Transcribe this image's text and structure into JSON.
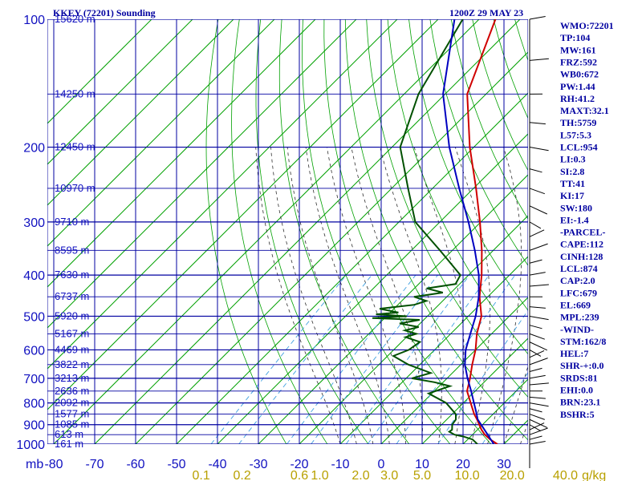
{
  "header": {
    "station_title": "KKEY (72201) Sounding",
    "valid_time": "1200Z 29 MAY 23"
  },
  "colors": {
    "grid": "#0000a0",
    "dry_adiabat": "#00a000",
    "moist_adiabat": "#303030",
    "mixing_ratio": "#40a0e0",
    "temperature": "#d00000",
    "dewpoint": "#005000",
    "parcel": "#0000c0",
    "wind_barb": "#000000",
    "mixing_ratio_labels": "#b8a000"
  },
  "indices": [
    "WMO:72201",
    "TP:104",
    "MW:161",
    "FRZ:592",
    "WB0:672",
    "PW:1.44",
    "RH:41.2",
    "MAXT:32.1",
    "TH:5759",
    "L57:5.3",
    "LCL:954",
    "LI:0.3",
    "SI:2.8",
    "TT:41",
    "KI:17",
    "SW:180",
    "EI:-1.4",
    "-PARCEL-",
    "CAPE:112",
    "CINH:128",
    "LCL:874",
    "CAP:2.0",
    "LFC:679",
    "EL:669",
    "MPL:239",
    "-WIND-",
    "STM:162/8",
    "HEL:7",
    "SHR-+:0.0",
    "SRDS:81",
    "EHI:0.0",
    "BRN:23.1",
    "BSHR:5"
  ],
  "chart_data": {
    "type": "line",
    "chart_kind": "skew-T log-P sounding",
    "y_scale": "log",
    "ylim": [
      1000,
      100
    ],
    "xlim": [
      -80,
      30
    ],
    "y_axis_unit_label": "mb",
    "pressure_ticks": [
      "100",
      "200",
      "300",
      "400",
      "500",
      "600",
      "700",
      "800",
      "900",
      "1000"
    ],
    "pressure_tick_values": [
      100,
      200,
      300,
      400,
      500,
      600,
      700,
      800,
      900,
      1000
    ],
    "temperature_ticks": [
      "-80",
      "-70",
      "-60",
      "-50",
      "-40",
      "-30",
      "-20",
      "-10",
      "0",
      "10",
      "20",
      "30"
    ],
    "temperature_tick_values": [
      -80,
      -70,
      -60,
      -50,
      -40,
      -30,
      -20,
      -10,
      0,
      10,
      20,
      30
    ],
    "height_labels": [
      "15620 m",
      "14250 m",
      "12450 m",
      "10970 m",
      "9710 m",
      "8595 m",
      "7630 m",
      "6737 m",
      "5920 m",
      "5167 m",
      "4469 m",
      "3822 m",
      "3213 m",
      "2636 m",
      "2092 m",
      "1577 m",
      "1085 m",
      "613 m",
      "161 m"
    ],
    "height_label_pressures": [
      100,
      150,
      200,
      250,
      300,
      350,
      400,
      450,
      500,
      550,
      600,
      650,
      700,
      750,
      800,
      850,
      900,
      950,
      1000
    ],
    "mixing_ratio_labels": [
      "0.1",
      "0.2",
      "0.6",
      "1.0",
      "2.0",
      "3.0",
      "5.0",
      "10.0",
      "20.0",
      "40.0",
      "g/kg"
    ],
    "mixing_ratio_label_temps": [
      -44,
      -34,
      -20,
      -15,
      -5,
      2,
      10,
      21,
      32,
      45,
      52
    ],
    "grid": true,
    "series": [
      {
        "key": "temperature",
        "p": [
          1000,
          975,
          950,
          925,
          900,
          875,
          850,
          800,
          750,
          700,
          650,
          600,
          550,
          500,
          450,
          400,
          350,
          300,
          250,
          200,
          150,
          100
        ],
        "t": [
          28.4,
          25.5,
          23.0,
          21.0,
          19.2,
          17.4,
          15.4,
          11.8,
          8.0,
          5.6,
          2.8,
          0.0,
          -3.6,
          -6.8,
          -12.0,
          -16.8,
          -22.8,
          -30.2,
          -39.4,
          -51.0,
          -64.6,
          -76.0
        ]
      },
      {
        "key": "dewpoint",
        "p": [
          1000,
          975,
          960,
          950,
          935,
          925,
          900,
          875,
          850,
          800,
          760,
          730,
          715,
          700,
          680,
          650,
          620,
          600,
          575,
          560,
          550,
          540,
          530,
          520,
          510,
          505,
          500,
          495,
          490,
          480,
          470,
          460,
          450,
          440,
          430,
          420,
          400,
          350,
          300,
          250,
          200,
          150,
          100
        ],
        "t": [
          23.5,
          21.2,
          18.3,
          15.6,
          13.6,
          13.8,
          12.6,
          12.2,
          10.9,
          5.8,
          -0.8,
          2.6,
          -2.1,
          -8.6,
          -5.3,
          -12.8,
          -18.6,
          -16.3,
          -15.5,
          -20.2,
          -18.4,
          -22.0,
          -19.5,
          -25.0,
          -21.0,
          -33.0,
          -25.0,
          -33.0,
          -28.0,
          -33.5,
          -26.0,
          -24.0,
          -28.0,
          -22.0,
          -27.0,
          -21.0,
          -22.0,
          -33.0,
          -46.0,
          -56.0,
          -68.0,
          -76.5,
          -84.0
        ]
      },
      {
        "key": "parcel",
        "p": [
          1000,
          950,
          874,
          850,
          800,
          750,
          700,
          650,
          600,
          550,
          500,
          450,
          400,
          350,
          300,
          250,
          200,
          150,
          100
        ],
        "t": [
          27.5,
          23.7,
          17.5,
          16.0,
          12.6,
          9.0,
          5.0,
          1.0,
          -2.4,
          -5.2,
          -8.2,
          -12.2,
          -17.5,
          -24.5,
          -33.0,
          -43.5,
          -56.0,
          -70.5,
          -86.0
        ]
      }
    ]
  }
}
